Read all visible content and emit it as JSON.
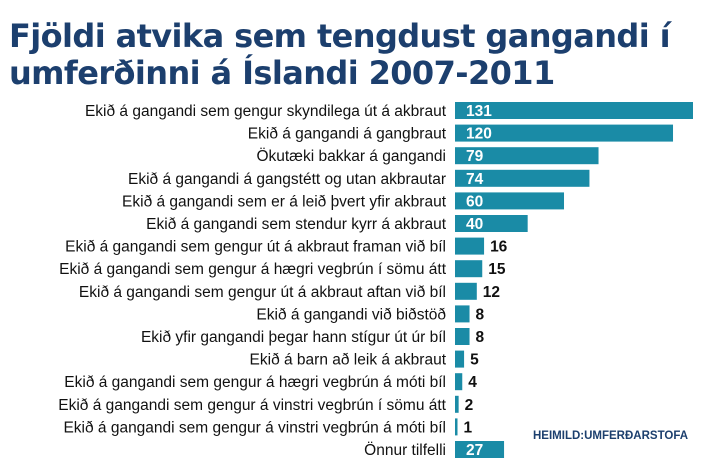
{
  "chart_data": {
    "type": "bar",
    "orientation": "horizontal",
    "title": "Fjöldi atvika sem tengdust gangandi í umferðinni á Íslandi 2007-2011",
    "categories": [
      "Ekið á gangandi sem gengur skyndilega út á akbraut",
      "Ekið á gangandi á gangbraut",
      "Ökutæki bakkar á gangandi",
      "Ekið á gangandi á gangstétt og utan akbrautar",
      "Ekið á gangandi sem er á leið þvert yfir akbraut",
      "Ekið á gangandi sem stendur kyrr á akbraut",
      "Ekið á gangandi sem gengur út á akbraut framan við bíl",
      "Ekið á gangandi sem gengur á hægri vegbrún í sömu átt",
      "Ekið á gangandi sem gengur út á akbraut aftan við bíl",
      "Ekið á gangandi við biðstöð",
      "Ekið yfir gangandi þegar hann stígur út úr bíl",
      "Ekið á barn að leik á akbraut",
      "Ekið á gangandi sem gengur á hægri vegbrún á móti bíl",
      "Ekið á gangandi sem gengur á vinstri vegbrún í sömu átt",
      "Ekið á gangandi sem gengur á vinstri vegbrún á móti bíl",
      "Önnur tilfelli"
    ],
    "values": [
      131,
      120,
      79,
      74,
      60,
      40,
      16,
      15,
      12,
      8,
      8,
      5,
      4,
      2,
      1,
      27
    ],
    "source": "HEIMILD:UMFERÐARSTOFA",
    "colors": {
      "bar": "#1a8ba6",
      "value_text": "#111111",
      "title": "#1c3f6e"
    },
    "grid": false,
    "legend": "none"
  }
}
